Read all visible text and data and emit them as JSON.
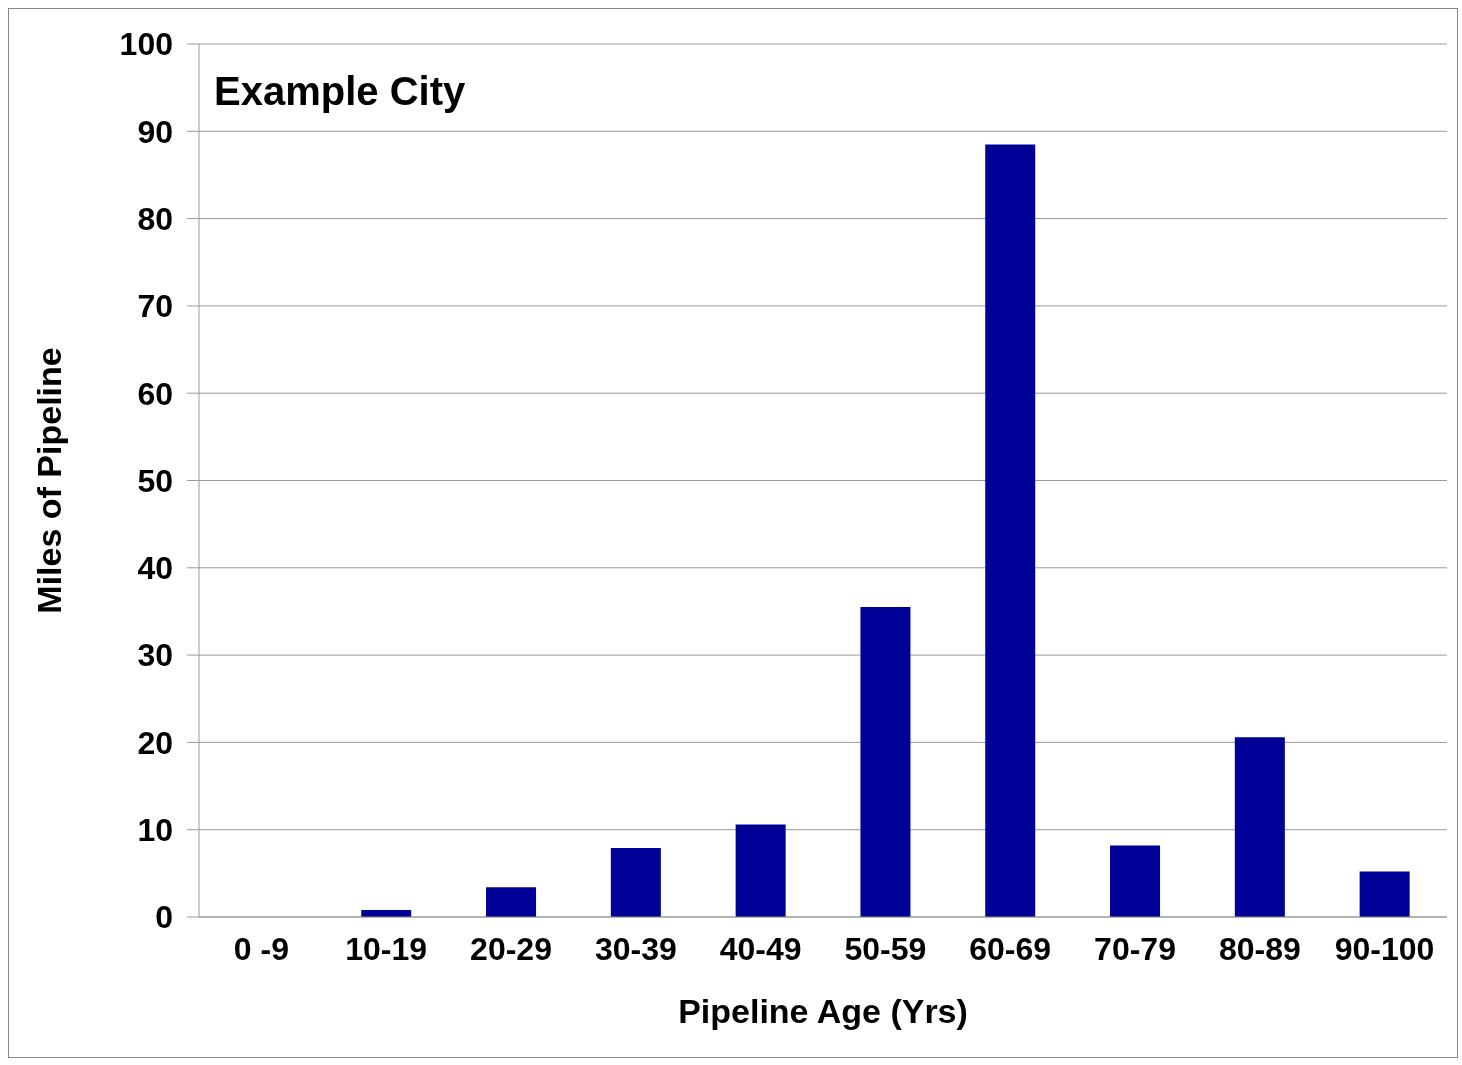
{
  "chart_data": {
    "type": "bar",
    "xlabel": "Pipeline Age (Yrs)",
    "ylabel": "Miles of Pipeline",
    "annotations": [
      "Example City"
    ],
    "categories": [
      "0 -9",
      "10-19",
      "20-29",
      "30-39",
      "40-49",
      "50-59",
      "60-69",
      "70-79",
      "80-89",
      "90-100"
    ],
    "values": [
      0,
      0.8,
      3.4,
      7.9,
      10.6,
      35.5,
      88.5,
      8.2,
      20.6,
      5.2
    ],
    "color": "#000096",
    "ylim": [
      0,
      100
    ],
    "yticks": [
      0,
      10,
      20,
      30,
      40,
      50,
      60,
      70,
      80,
      90,
      100
    ],
    "grid": "y",
    "legend": false
  }
}
